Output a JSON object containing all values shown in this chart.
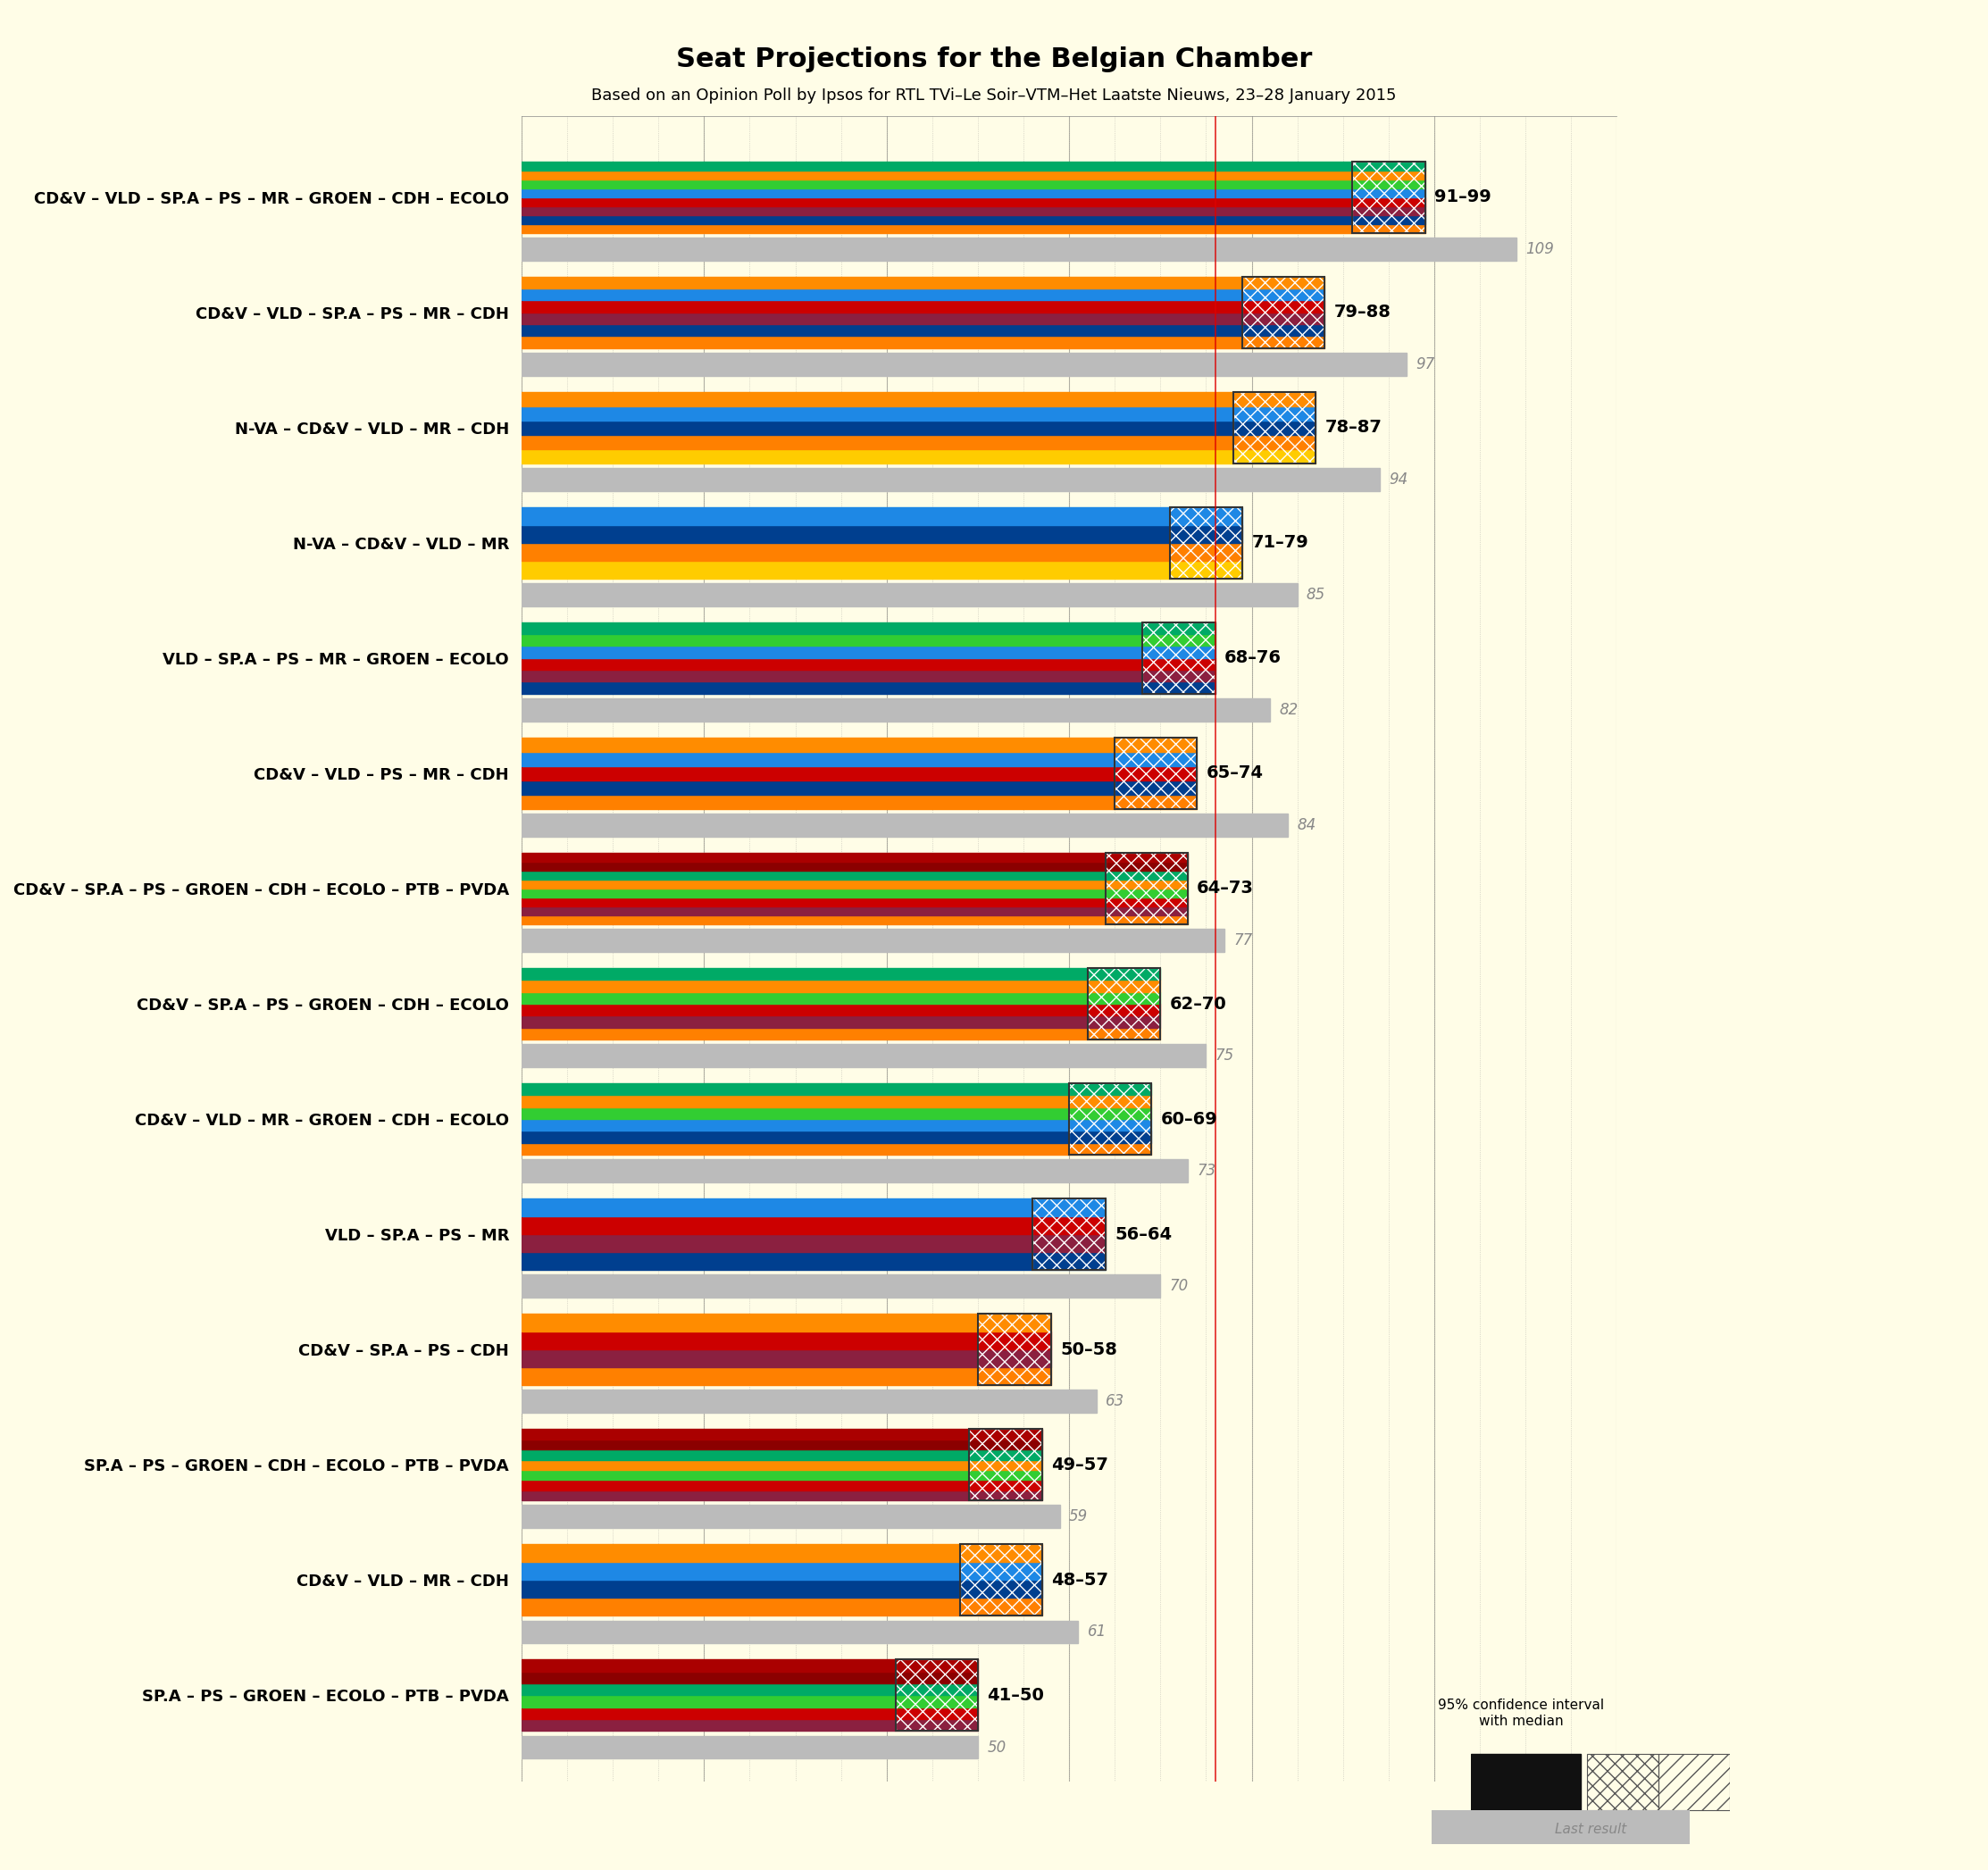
{
  "title": "Seat Projections for the Belgian Chamber",
  "subtitle": "Based on an Opinion Poll by Ipsos for RTL TVi–Le Soir–VTM–Het Laatste Nieuws, 23–28 January 2015",
  "background_color": "#FFFDE7",
  "coalitions": [
    "CD&V – VLD – SP.A – PS – MR – GROEN – CDH – ECOLO",
    "CD&V – VLD – SP.A – PS – MR – CDH",
    "N-VA – CD&V – VLD – MR – CDH",
    "N-VA – CD&V – VLD – MR",
    "VLD – SP.A – PS – MR – GROEN – ECOLO",
    "CD&V – VLD – PS – MR – CDH",
    "CD&V – SP.A – PS – GROEN – CDH – ECOLO – PTB – PVDA",
    "CD&V – SP.A – PS – GROEN – CDH – ECOLO",
    "CD&V – VLD – MR – GROEN – CDH – ECOLO",
    "VLD – SP.A – PS – MR",
    "CD&V – SP.A – PS – CDH",
    "SP.A – PS – GROEN – CDH – ECOLO – PTB – PVDA",
    "CD&V – VLD – MR – CDH",
    "SP.A – PS – GROEN – ECOLO – PTB – PVDA"
  ],
  "ci_low": [
    91,
    79,
    78,
    71,
    68,
    65,
    64,
    62,
    60,
    56,
    50,
    49,
    48,
    41
  ],
  "ci_high": [
    99,
    88,
    87,
    79,
    76,
    74,
    73,
    70,
    69,
    64,
    58,
    57,
    57,
    50
  ],
  "last_result": [
    109,
    97,
    94,
    85,
    82,
    84,
    77,
    75,
    73,
    70,
    63,
    59,
    61,
    50
  ],
  "majority": 76,
  "xmin": 0,
  "xmax": 120,
  "bar_stripe_colors": [
    [
      "#FF8000",
      "#003F8F",
      "#8B2040",
      "#CC0000",
      "#1E88E5",
      "#32CD32",
      "#FF8C00",
      "#00AA66"
    ],
    [
      "#FF8000",
      "#003F8F",
      "#8B2040",
      "#CC0000",
      "#1E88E5",
      "#FF8C00"
    ],
    [
      "#FFCC00",
      "#FF8000",
      "#003F8F",
      "#1E88E5",
      "#FF8C00"
    ],
    [
      "#FFCC00",
      "#FF8000",
      "#003F8F",
      "#1E88E5"
    ],
    [
      "#003F8F",
      "#8B2040",
      "#CC0000",
      "#1E88E5",
      "#32CD32",
      "#00AA66"
    ],
    [
      "#FF8000",
      "#003F8F",
      "#CC0000",
      "#1E88E5",
      "#FF8C00"
    ],
    [
      "#FF8000",
      "#8B2040",
      "#CC0000",
      "#32CD32",
      "#FF8C00",
      "#00AA66",
      "#8B0000",
      "#AA0000"
    ],
    [
      "#FF8000",
      "#8B2040",
      "#CC0000",
      "#32CD32",
      "#FF8C00",
      "#00AA66"
    ],
    [
      "#FF8000",
      "#003F8F",
      "#1E88E5",
      "#32CD32",
      "#FF8C00",
      "#00AA66"
    ],
    [
      "#003F8F",
      "#8B2040",
      "#CC0000",
      "#1E88E5"
    ],
    [
      "#FF8000",
      "#8B2040",
      "#CC0000",
      "#FF8C00"
    ],
    [
      "#8B2040",
      "#CC0000",
      "#32CD32",
      "#FF8C00",
      "#00AA66",
      "#8B0000",
      "#AA0000"
    ],
    [
      "#FF8000",
      "#003F8F",
      "#1E88E5",
      "#FF8C00"
    ],
    [
      "#8B2040",
      "#CC0000",
      "#32CD32",
      "#00AA66",
      "#8B0000",
      "#AA0000"
    ]
  ]
}
